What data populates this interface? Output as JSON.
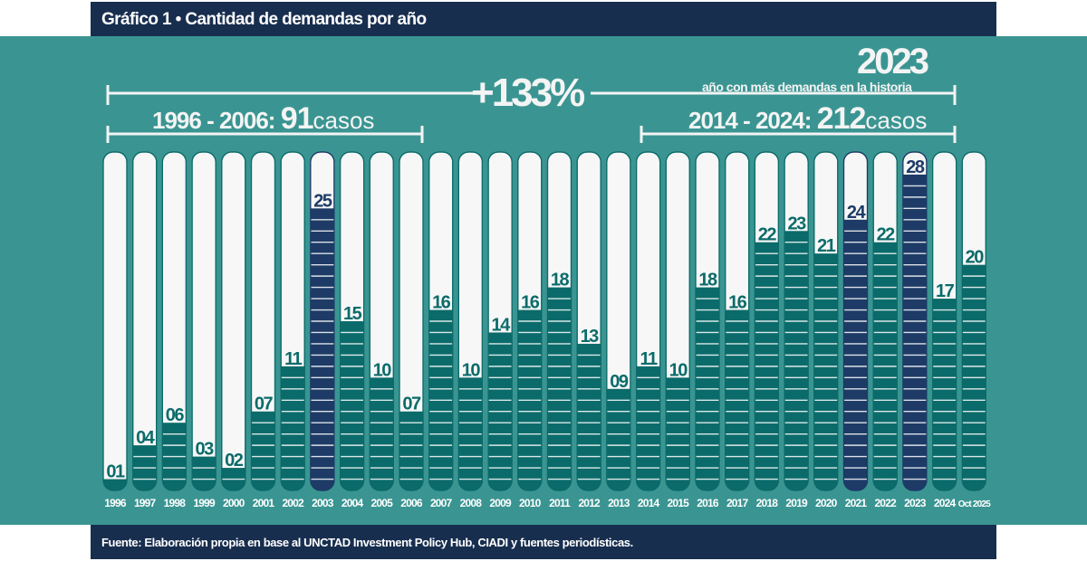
{
  "header": {
    "title": "Gráfico 1 • Cantidad de demandas por año"
  },
  "footer": {
    "source": "Fuente: Elaboración propia en base al UNCTAD Investment Policy Hub, CIADI y fuentes periodísticas."
  },
  "annotations": {
    "growth": "+133%",
    "period1_range": "1996 - 2006:",
    "period1_total": "91",
    "period1_unit": "casos",
    "period2_range": "2014 - 2024:",
    "period2_total": "212",
    "period2_unit": "casos",
    "record_year": "2023",
    "record_text": "año con más demandas en la historia"
  },
  "colors": {
    "background": "#3a9592",
    "bar_fill": "#0b6b6a",
    "highlight_fill": "#1d3b66",
    "bar_track": "#f7f7f7",
    "header": "#182e4f"
  },
  "chart_data": {
    "type": "bar",
    "title": "Gráfico 1 • Cantidad de demandas por año",
    "categories": [
      "1996",
      "1997",
      "1998",
      "1999",
      "2000",
      "2001",
      "2002",
      "2003",
      "2004",
      "2005",
      "2006",
      "2007",
      "2008",
      "2009",
      "2010",
      "2011",
      "2012",
      "2013",
      "2014",
      "2015",
      "2016",
      "2017",
      "2018",
      "2019",
      "2020",
      "2021",
      "2022",
      "2023",
      "2024",
      "Oct 2025"
    ],
    "values": [
      1,
      4,
      6,
      3,
      2,
      7,
      11,
      25,
      15,
      10,
      7,
      16,
      10,
      14,
      16,
      18,
      13,
      9,
      11,
      10,
      18,
      16,
      22,
      23,
      21,
      24,
      22,
      28,
      17,
      20
    ],
    "data_labels": [
      "01",
      "04",
      "06",
      "03",
      "02",
      "07",
      "11",
      "25",
      "15",
      "10",
      "07",
      "16",
      "10",
      "14",
      "16",
      "18",
      "13",
      "09",
      "11",
      "10",
      "18",
      "16",
      "22",
      "23",
      "21",
      "24",
      "22",
      "28",
      "17",
      "20"
    ],
    "highlighted": [
      "2003",
      "2021",
      "2023"
    ],
    "ylim": [
      0,
      30
    ],
    "grid": false,
    "legend": "none"
  }
}
